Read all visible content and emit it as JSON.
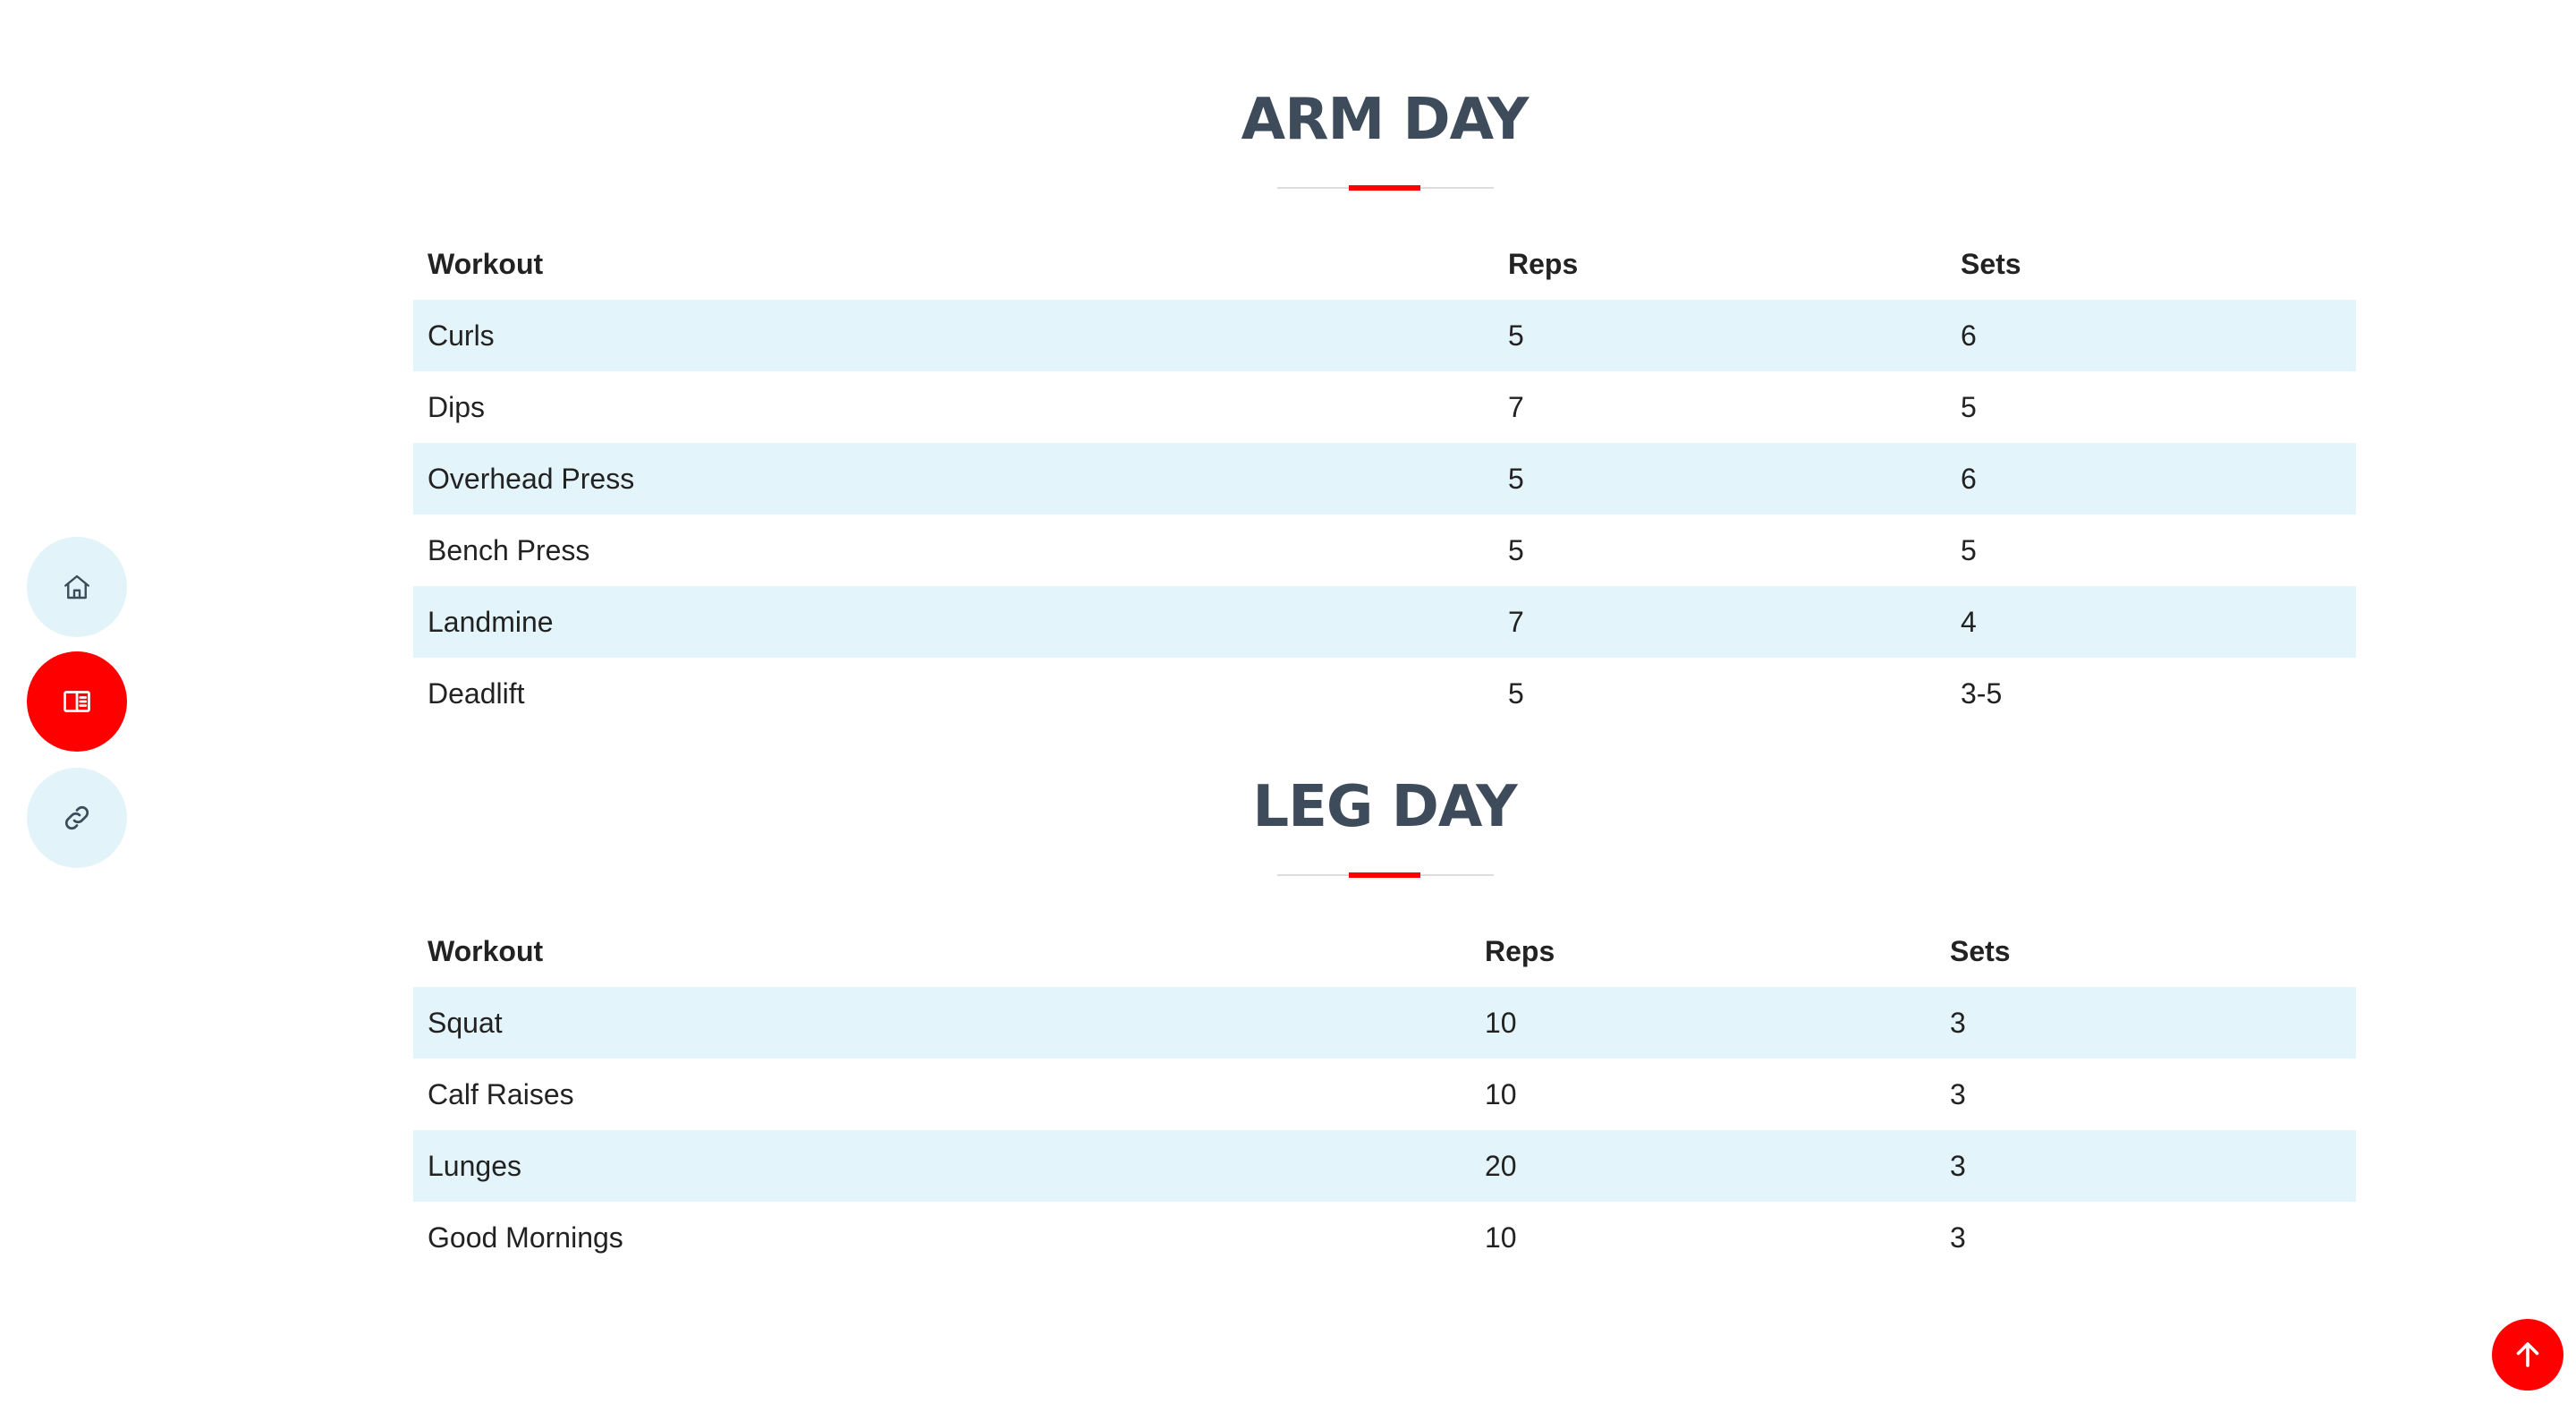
{
  "nav": {
    "items": [
      {
        "icon": "home-icon",
        "active": false
      },
      {
        "icon": "book-icon",
        "active": true
      },
      {
        "icon": "link-icon",
        "active": false
      }
    ]
  },
  "colors": {
    "accent": "#ff0000",
    "title": "#3d4b5a",
    "stripe": "#e3f4fb",
    "nav_bg": "#e3f3fa"
  },
  "arm_day": {
    "title": "ARM DAY",
    "headers": [
      "Workout",
      "Reps",
      "Sets"
    ],
    "rows": [
      [
        "Curls",
        "5",
        "6"
      ],
      [
        "Dips",
        "7",
        "5"
      ],
      [
        "Overhead Press",
        "5",
        "6"
      ],
      [
        "Bench Press",
        "5",
        "5"
      ],
      [
        "Landmine",
        "7",
        "4"
      ],
      [
        "Deadlift",
        "5",
        "3-5"
      ]
    ]
  },
  "leg_day": {
    "title": "LEG DAY",
    "headers": [
      "Workout",
      "Reps",
      "Sets"
    ],
    "rows": [
      [
        "Squat",
        "10",
        "3"
      ],
      [
        "Calf Raises",
        "10",
        "3"
      ],
      [
        "Lunges",
        "20",
        "3"
      ],
      [
        "Good Mornings",
        "10",
        "3"
      ]
    ]
  },
  "back_to_top": {
    "icon": "arrow-up-icon"
  }
}
